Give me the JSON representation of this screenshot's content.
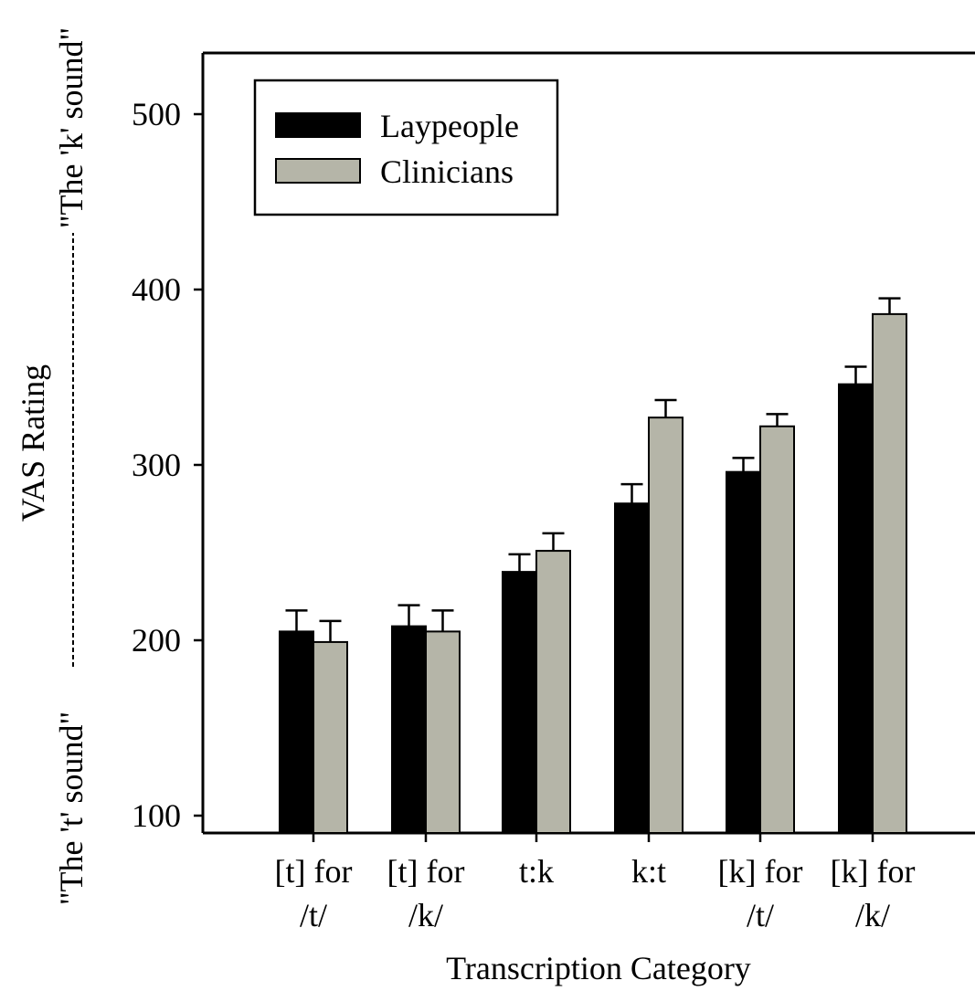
{
  "chart_data": {
    "type": "bar",
    "title": "",
    "xlabel": "Transcription Category",
    "ylabel": "VAS Rating",
    "ylabel_low_anchor": "\"The 't' sound\"",
    "ylabel_high_anchor": "\"The 'k' sound\"",
    "ylim": [
      90,
      535
    ],
    "yticks": [
      100,
      200,
      300,
      400,
      500
    ],
    "categories": [
      [
        "[t] for",
        "/t/"
      ],
      [
        "[t] for",
        "/k/"
      ],
      [
        "t:k"
      ],
      [
        "k:t"
      ],
      [
        "[k] for",
        "/t/"
      ],
      [
        "[k] for",
        "/k/"
      ]
    ],
    "series": [
      {
        "name": "Laypeople",
        "color": "#000000",
        "values": [
          205,
          208,
          239,
          278,
          296,
          346
        ],
        "errors": [
          12,
          12,
          10,
          11,
          8,
          10
        ]
      },
      {
        "name": "Clinicians",
        "color": "#b5b5a8",
        "values": [
          199,
          205,
          251,
          327,
          322,
          386
        ],
        "errors": [
          12,
          12,
          10,
          10,
          7,
          9
        ]
      }
    ],
    "legend_position": "top-left",
    "grid": false
  }
}
